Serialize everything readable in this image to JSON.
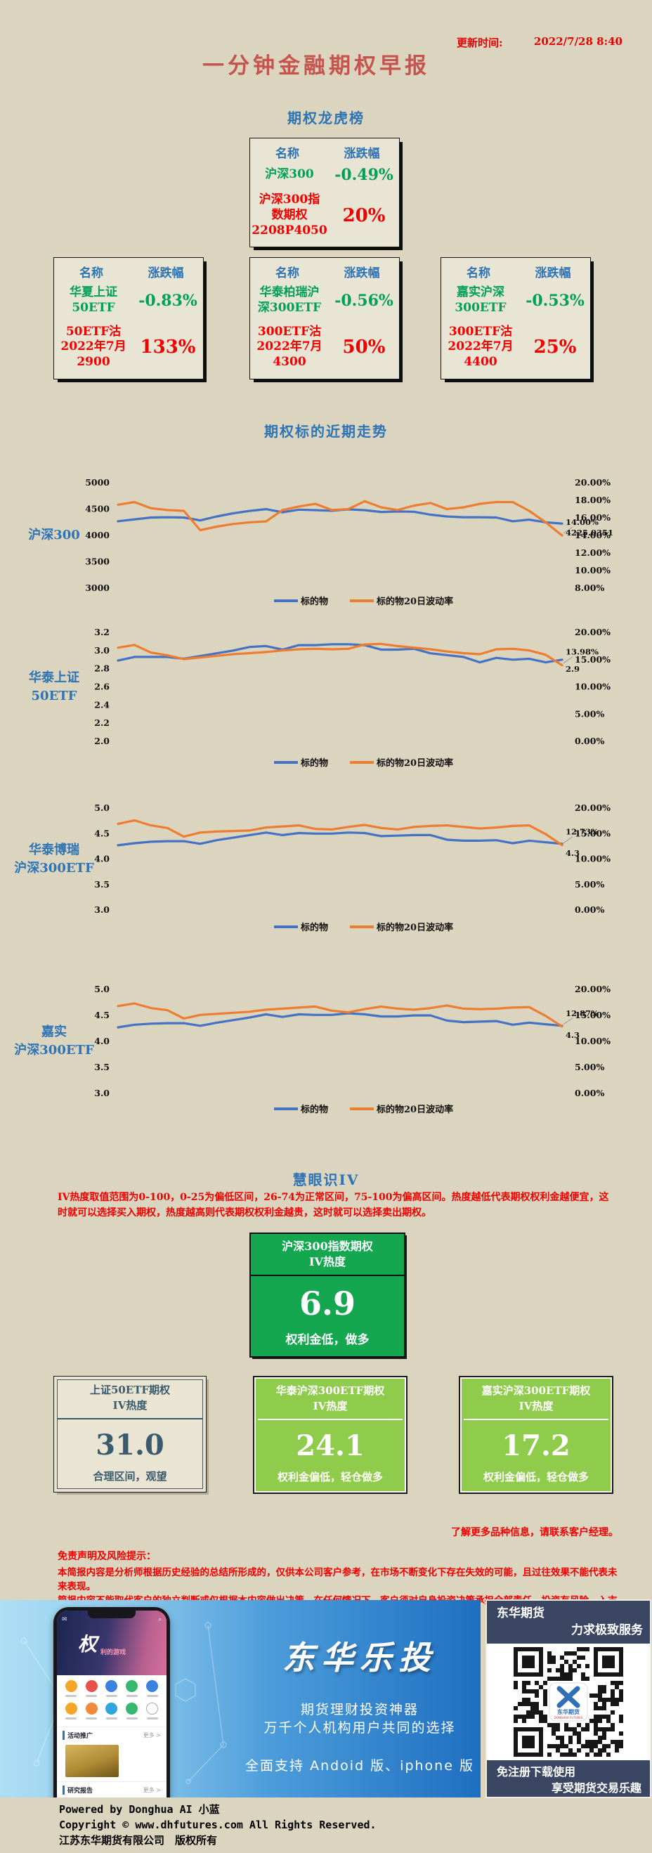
{
  "header": {
    "update_label": "更新时间:",
    "update_value": "2022/7/28 8:40",
    "title": "一分钟金融期权早报"
  },
  "leaderboard": {
    "heading": "期权龙虎榜",
    "columns": {
      "name": "名称",
      "change": "涨跌幅"
    },
    "boards": [
      {
        "underlying": "沪深300",
        "underlying_change": "-0.49%",
        "option": "沪深300指\n数期权\n2208P4050",
        "option_change": "20%"
      },
      {
        "underlying": "华夏上证\n50ETF",
        "underlying_change": "-0.83%",
        "option": "50ETF沽\n2022年7月\n2900",
        "option_change": "133%"
      },
      {
        "underlying": "华泰柏瑞沪\n深300ETF",
        "underlying_change": "-0.56%",
        "option": "300ETF沽\n2022年7月\n4300",
        "option_change": "50%"
      },
      {
        "underlying": "嘉实沪深\n300ETF",
        "underlying_change": "-0.53%",
        "option": "300ETF沽\n2022年7月\n4400",
        "option_change": "25%"
      }
    ]
  },
  "trend": {
    "heading": "期权标的近期走势"
  },
  "chart_data": [
    {
      "type": "line",
      "label": "沪深300",
      "left_ticks": [
        "5000",
        "4500",
        "4000",
        "3500",
        "3000"
      ],
      "left_range": [
        3000,
        5000
      ],
      "right_ticks": [
        "20.00%",
        "18.00%",
        "16.00%",
        "14.00%",
        "12.00%",
        "10.00%",
        "8.00%"
      ],
      "right_range": [
        8,
        20
      ],
      "series": [
        {
          "name": "标的物",
          "axis": "left",
          "color": "#4472C4",
          "end_label": "4225.0351",
          "values": [
            4270,
            4305,
            4340,
            4345,
            4340,
            4285,
            4360,
            4420,
            4465,
            4500,
            4440,
            4490,
            4480,
            4470,
            4495,
            4480,
            4445,
            4455,
            4450,
            4395,
            4360,
            4345,
            4345,
            4340,
            4270,
            4300,
            4250,
            4225
          ]
        },
        {
          "name": "标的物20日波动率",
          "axis": "right",
          "color": "#ED7D31",
          "end_label": "14.00%",
          "values": [
            17.5,
            17.8,
            17.1,
            16.9,
            16.8,
            14.6,
            15.0,
            15.3,
            15.5,
            15.6,
            16.9,
            17.3,
            17.6,
            16.9,
            17.0,
            17.9,
            17.2,
            16.9,
            17.4,
            17.7,
            17.0,
            17.2,
            17.6,
            17.8,
            17.8,
            16.8,
            15.5,
            14.0
          ]
        }
      ]
    },
    {
      "type": "line",
      "label": "华泰上证\n50ETF",
      "left_ticks": [
        "3.2",
        "3.0",
        "2.8",
        "2.6",
        "2.4",
        "2.2",
        "2.0"
      ],
      "left_range": [
        2.0,
        3.2
      ],
      "right_ticks": [
        "20.00%",
        "15.00%",
        "10.00%",
        "5.00%",
        "0.00%"
      ],
      "right_range": [
        0,
        20
      ],
      "series": [
        {
          "name": "标的物",
          "axis": "left",
          "color": "#4472C4",
          "end_label": "2.9",
          "values": [
            2.89,
            2.93,
            2.93,
            2.93,
            2.91,
            2.94,
            2.97,
            3.0,
            3.04,
            3.05,
            3.01,
            3.06,
            3.06,
            3.07,
            3.07,
            3.06,
            3.01,
            3.01,
            3.02,
            2.97,
            2.95,
            2.93,
            2.87,
            2.92,
            2.9,
            2.91,
            2.87,
            2.9
          ]
        },
        {
          "name": "标的物20日波动率",
          "axis": "right",
          "color": "#ED7D31",
          "end_label": "13.98%",
          "values": [
            17.2,
            17.7,
            16.3,
            15.8,
            15.1,
            15.4,
            15.7,
            16.0,
            16.2,
            16.4,
            16.7,
            16.9,
            17.0,
            16.9,
            17.0,
            17.8,
            17.9,
            17.5,
            17.2,
            16.9,
            16.5,
            16.2,
            16.0,
            16.9,
            17.0,
            16.7,
            15.9,
            13.98
          ]
        }
      ]
    },
    {
      "type": "line",
      "label": "华泰博瑞\n沪深300ETF",
      "left_ticks": [
        "5.0",
        "4.5",
        "4.0",
        "3.5",
        "3.0"
      ],
      "left_range": [
        3.0,
        5.0
      ],
      "right_ticks": [
        "20.00%",
        "15.00%",
        "10.00%",
        "5.00%",
        "0.00%"
      ],
      "right_range": [
        0,
        20
      ],
      "series": [
        {
          "name": "标的物",
          "axis": "left",
          "color": "#4472C4",
          "end_label": "4.3",
          "values": [
            4.27,
            4.31,
            4.34,
            4.35,
            4.35,
            4.3,
            4.37,
            4.42,
            4.47,
            4.52,
            4.47,
            4.51,
            4.5,
            4.5,
            4.52,
            4.51,
            4.45,
            4.46,
            4.47,
            4.47,
            4.38,
            4.36,
            4.36,
            4.37,
            4.31,
            4.36,
            4.33,
            4.3
          ]
        },
        {
          "name": "标的物20日波动率",
          "axis": "right",
          "color": "#ED7D31",
          "end_label": "12.73%",
          "values": [
            16.9,
            17.6,
            16.6,
            16.1,
            14.4,
            15.2,
            15.4,
            15.5,
            15.6,
            16.2,
            16.4,
            16.6,
            15.9,
            15.8,
            16.3,
            16.7,
            16.1,
            15.8,
            16.3,
            16.5,
            16.6,
            16.3,
            16.0,
            16.2,
            16.5,
            16.6,
            14.9,
            12.73
          ]
        }
      ]
    },
    {
      "type": "line",
      "label": "嘉实\n沪深300ETF",
      "left_ticks": [
        "5.0",
        "4.5",
        "4.0",
        "3.5",
        "3.0"
      ],
      "left_range": [
        3.0,
        5.0
      ],
      "right_ticks": [
        "20.00%",
        "15.00%",
        "10.00%",
        "5.00%",
        "0.00%"
      ],
      "right_range": [
        0,
        20
      ],
      "series": [
        {
          "name": "标的物",
          "axis": "left",
          "color": "#4472C4",
          "end_label": "4.3",
          "values": [
            4.27,
            4.32,
            4.34,
            4.35,
            4.35,
            4.3,
            4.36,
            4.41,
            4.46,
            4.52,
            4.47,
            4.52,
            4.51,
            4.51,
            4.54,
            4.52,
            4.48,
            4.48,
            4.5,
            4.5,
            4.4,
            4.37,
            4.38,
            4.39,
            4.32,
            4.36,
            4.33,
            4.3
          ]
        },
        {
          "name": "标的物20日波动率",
          "axis": "right",
          "color": "#ED7D31",
          "end_label": "12.87%",
          "values": [
            16.8,
            17.3,
            16.4,
            16.0,
            14.4,
            15.1,
            15.3,
            15.5,
            15.7,
            16.1,
            16.3,
            16.5,
            16.7,
            15.9,
            15.6,
            16.2,
            16.7,
            16.3,
            16.1,
            16.4,
            16.9,
            16.3,
            16.2,
            16.3,
            16.5,
            16.6,
            14.9,
            12.87
          ]
        }
      ]
    }
  ],
  "iv": {
    "heading": "慧眼识IV",
    "note": "IV热度取值范围为0-100，0-25为偏低区间，26-74为正常区间，75-100为偏高区间。热度越低代表期权权利金越便宜，这时就可以选择买入期权，热度越高则代表期权权利金越贵，这时就可以选择卖出期权。",
    "main_card": {
      "title": "沪深300指数期权\nIV热度",
      "value": "6.9",
      "advice": "权利金低，做多"
    },
    "cards": [
      {
        "title": "上证50ETF期权\nIV热度",
        "value": "31.0",
        "advice": "合理区间，观望",
        "variant": "plain"
      },
      {
        "title": "华泰沪深300ETF期权\nIV热度",
        "value": "24.1",
        "advice": "权利金偏低，轻仓做多",
        "variant": "green"
      },
      {
        "title": "嘉实沪深300ETF期权\nIV热度",
        "value": "17.2",
        "advice": "权利金偏低，轻仓做多",
        "variant": "green"
      }
    ],
    "more_info": "了解更多品种信息，请联系客户经理。"
  },
  "disclaimer": {
    "title": "免责声明及风险提示：",
    "line1": "本简报内容是分析师根据历史经验的总结所形成的，仅供本公司客户参考，在市场不断变化下存在失效的可能，且过往效果不能代表未来表现。",
    "line2": "简报内容不能取代客户的独立判断或仅根据本内容做出决策。在任何情况下，客户须对自身投资决策承担全部责任。投资有风险，入市须谨慎。"
  },
  "banner": {
    "app_title": "东华乐投",
    "slogan1": "期货理财投资神器",
    "slogan2": "万千个人机构用户共同的选择",
    "support": "全面支持 Andoid 版、iphone 版",
    "phone": {
      "hero_char": "权",
      "hero_sub": "利的游戏",
      "section1": "活动推广",
      "more1": "更多 >",
      "section2": "研究报告",
      "more2": "更多 >"
    },
    "right": {
      "brand": "东华期货",
      "slogan": "力求极致服务",
      "qr_brand": "东华期货",
      "qr_sub": "DONGHUA FUTURES",
      "cta1": "免注册下载使用",
      "cta2": "享受期货交易乐趣"
    }
  },
  "footer": {
    "line1": "Powered by Donghua AI 小蓝",
    "line2": "Copyright © www.dhfutures.com  All Rights Reserved.",
    "line3": "江苏东华期货有限公司　版权所有"
  }
}
